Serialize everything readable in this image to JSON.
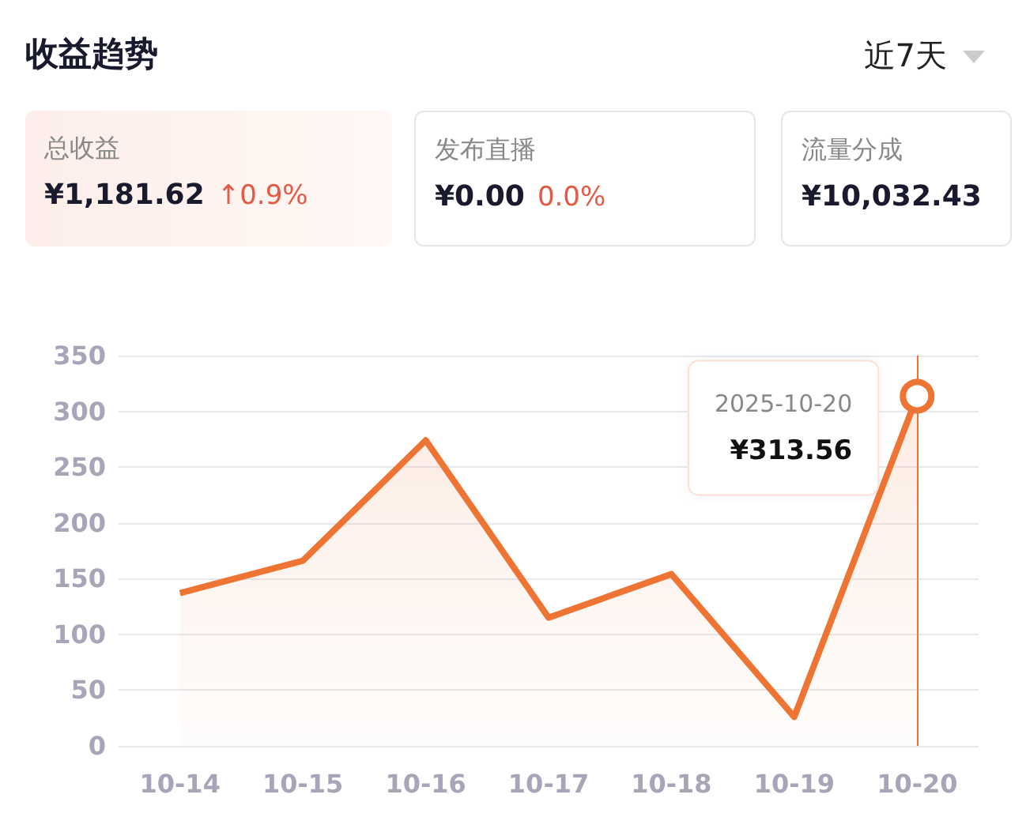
{
  "chart_data": {
    "type": "area",
    "title": "收益趋势",
    "categories": [
      "10-14",
      "10-15",
      "10-16",
      "10-17",
      "10-18",
      "10-19",
      "10-20"
    ],
    "series": [
      {
        "color": "#ee7433",
        "values": [
          137,
          166,
          274,
          115,
          154,
          26,
          313.56
        ]
      }
    ],
    "ylim": [
      0,
      350
    ],
    "yticks": [
      0,
      50,
      100,
      150,
      200,
      250,
      300,
      350
    ],
    "grid": "y",
    "marker": "none",
    "ref_lines": [
      {
        "axis": "x",
        "value": "10-20",
        "color": "#ee7433"
      }
    ],
    "annotations": [
      "近7天",
      "总收益",
      "¥1,181.62",
      "↑0.9%",
      "发布直播",
      "¥0.00",
      "0.0%",
      "流量分成",
      "¥10,032.43",
      {
        "text": "2025-10-20\n¥313.56",
        "x": "10-20",
        "y": 313.56
      }
    ]
  }
}
